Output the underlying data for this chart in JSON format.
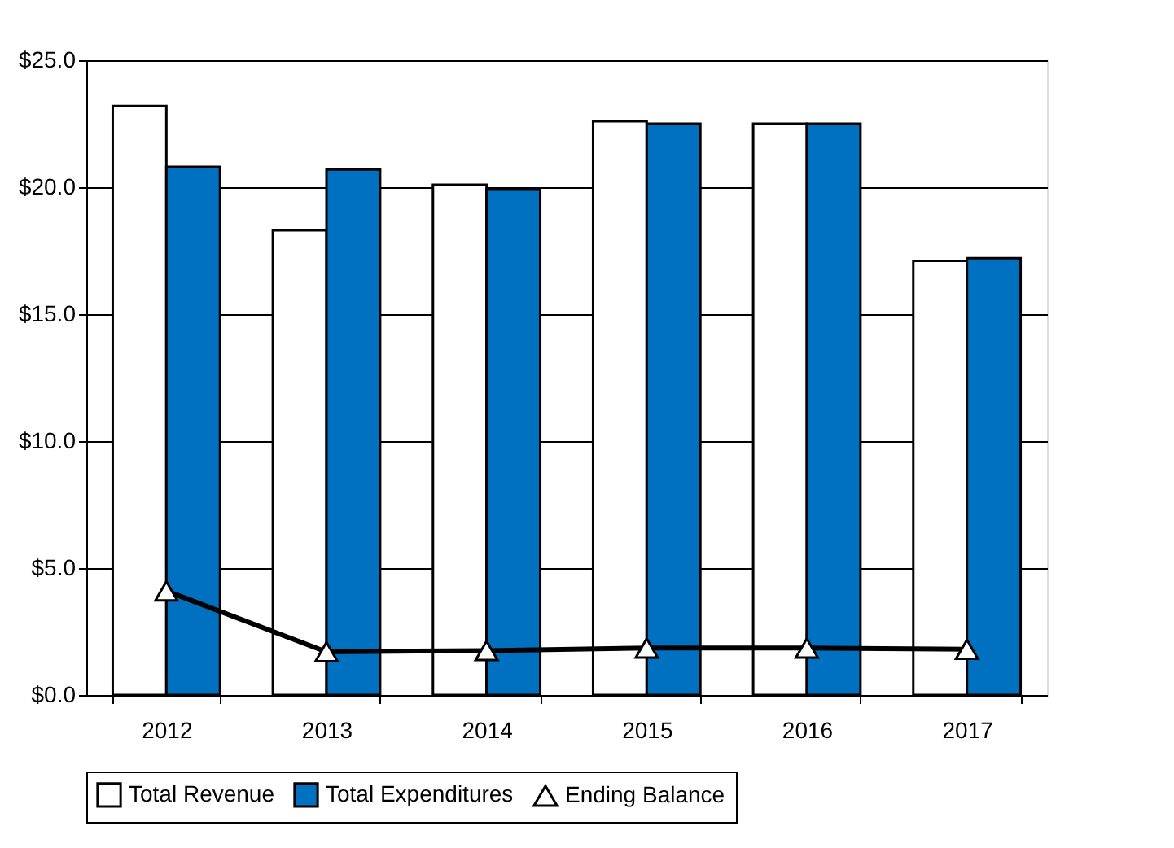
{
  "chart_data": {
    "type": "bar",
    "categories": [
      "2012",
      "2013",
      "2014",
      "2015",
      "2016",
      "2017"
    ],
    "series": [
      {
        "name": "Total Revenue",
        "color": "#ffffff",
        "values": [
          23.2,
          18.3,
          20.1,
          22.6,
          22.5,
          17.1
        ]
      },
      {
        "name": "Total Expenditures",
        "color": "#0070c0",
        "values": [
          20.8,
          20.7,
          19.9,
          22.5,
          22.5,
          17.2
        ]
      },
      {
        "name": "Ending Balance",
        "type": "line",
        "color": "#000000",
        "marker": "triangle",
        "line_style": "solid",
        "values": [
          4.1,
          1.7,
          1.75,
          1.85,
          1.85,
          1.8
        ]
      }
    ],
    "ylim": [
      0,
      25
    ],
    "yticks": [
      {
        "value": 0,
        "label": "$0.0"
      },
      {
        "value": 5,
        "label": "$5.0"
      },
      {
        "value": 10,
        "label": "$10.0"
      },
      {
        "value": 15,
        "label": "$15.0"
      },
      {
        "value": 20,
        "label": "$20.0"
      },
      {
        "value": 25,
        "label": "$25.0"
      }
    ],
    "grid": "y",
    "legend": "bottom"
  }
}
